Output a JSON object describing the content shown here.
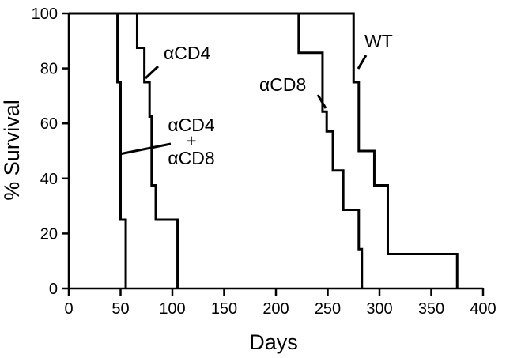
{
  "chart_data": {
    "type": "line",
    "title": "",
    "xlabel": "Days",
    "ylabel": "% Survival",
    "xlim": [
      0,
      400
    ],
    "ylim": [
      0,
      100
    ],
    "xticks": [
      0,
      50,
      100,
      150,
      200,
      250,
      300,
      350,
      400
    ],
    "yticks": [
      0,
      20,
      40,
      60,
      80,
      100
    ],
    "grid": false,
    "legend": "none",
    "step": "post",
    "series": [
      {
        "name": "αCD4 + αCD8",
        "x": [
          0,
          47,
          50,
          55
        ],
        "y": [
          100,
          75,
          25,
          0
        ]
      },
      {
        "name": "αCD4",
        "x": [
          0,
          66,
          73,
          78,
          80,
          82,
          84,
          105
        ],
        "y": [
          100,
          87.5,
          75,
          62.5,
          37.5,
          37.5,
          25,
          0
        ]
      },
      {
        "name": "αCD8",
        "x": [
          0,
          222,
          245,
          249,
          255,
          265,
          280,
          283
        ],
        "y": [
          100,
          85.7,
          64.3,
          57.1,
          42.9,
          28.6,
          14.3,
          0
        ]
      },
      {
        "name": "WT",
        "x": [
          0,
          275,
          280,
          295,
          308,
          375
        ],
        "y": [
          100,
          75,
          50,
          37.5,
          12.5,
          0
        ]
      }
    ],
    "annotations": [
      {
        "label_lines": [
          "αCD4"
        ],
        "point": {
          "x": 75,
          "y": 75
        }
      },
      {
        "label_lines": [
          "αCD4",
          "+",
          "αCD8"
        ],
        "point": {
          "x": 49,
          "y": 48
        }
      },
      {
        "label_lines": [
          "αCD8"
        ],
        "point": {
          "x": 248,
          "y": 65
        }
      },
      {
        "label_lines": [
          "WT"
        ],
        "point": {
          "x": 276,
          "y": 79
        }
      }
    ]
  }
}
